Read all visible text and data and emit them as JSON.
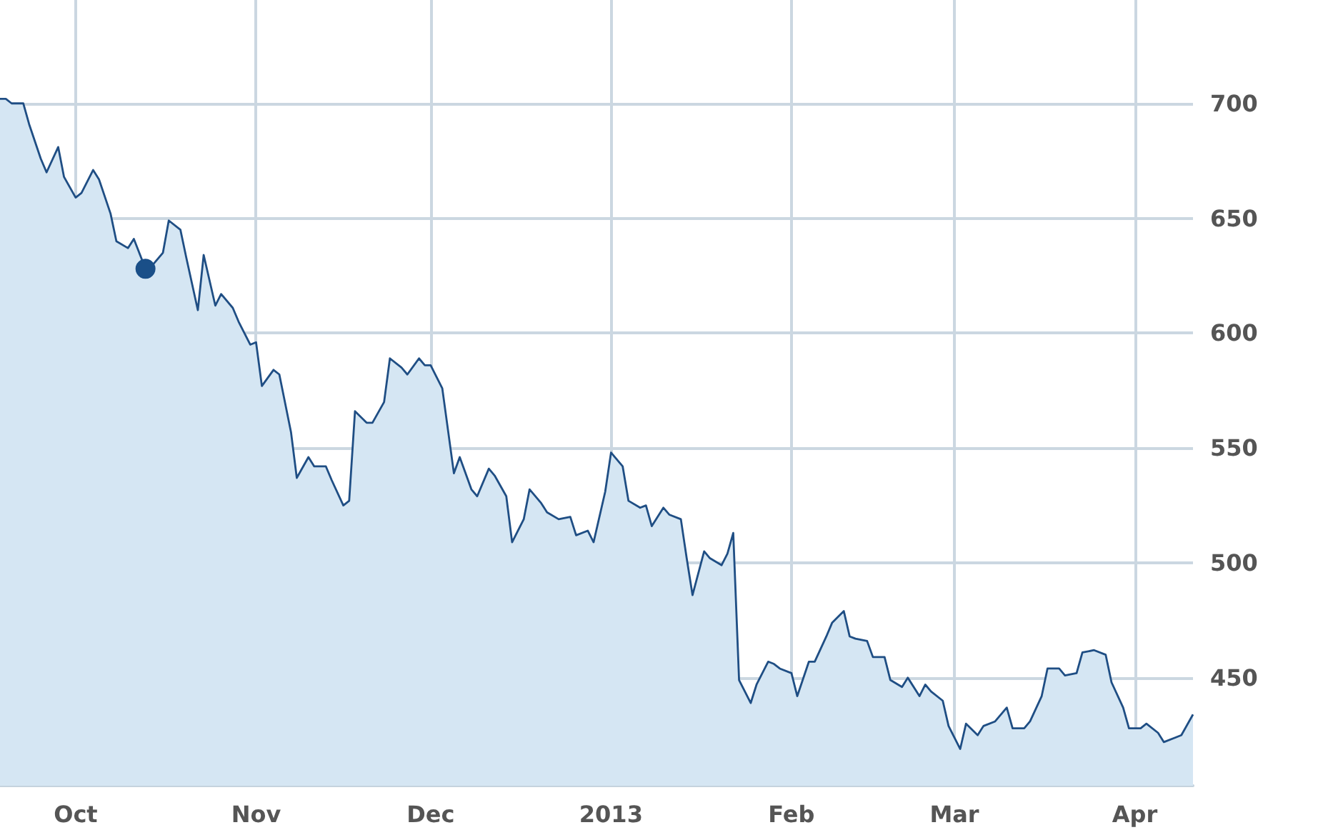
{
  "chart_data": {
    "type": "area",
    "x": [
      "2012-09-18",
      "2012-09-19",
      "2012-09-20",
      "2012-09-22",
      "2012-09-23",
      "2012-09-25",
      "2012-09-26",
      "2012-09-28",
      "2012-09-29",
      "2012-10-01",
      "2012-10-02",
      "2012-10-04",
      "2012-10-05",
      "2012-10-07",
      "2012-10-08",
      "2012-10-10",
      "2012-10-11",
      "2012-10-13",
      "2012-10-14",
      "2012-10-16",
      "2012-10-17",
      "2012-10-19",
      "2012-10-20",
      "2012-10-22",
      "2012-10-23",
      "2012-10-25",
      "2012-10-26",
      "2012-10-28",
      "2012-10-29",
      "2012-10-31",
      "2012-11-01",
      "2012-11-02",
      "2012-11-04",
      "2012-11-05",
      "2012-11-07",
      "2012-11-08",
      "2012-11-10",
      "2012-11-11",
      "2012-11-13",
      "2012-11-14",
      "2012-11-16",
      "2012-11-17",
      "2012-11-18",
      "2012-11-20",
      "2012-11-21",
      "2012-11-23",
      "2012-11-24",
      "2012-11-26",
      "2012-11-27",
      "2012-11-29",
      "2012-11-30",
      "2012-12-01",
      "2012-12-03",
      "2012-12-05",
      "2012-12-06",
      "2012-12-08",
      "2012-12-09",
      "2012-12-11",
      "2012-12-12",
      "2012-12-14",
      "2012-12-15",
      "2012-12-17",
      "2012-12-18",
      "2012-12-20",
      "2012-12-21",
      "2012-12-23",
      "2012-12-25",
      "2012-12-26",
      "2012-12-28",
      "2012-12-29",
      "2012-12-31",
      "2013-01-01",
      "2013-01-03",
      "2013-01-04",
      "2013-01-06",
      "2013-01-07",
      "2013-01-08",
      "2013-01-10",
      "2013-01-11",
      "2013-01-13",
      "2013-01-14",
      "2013-01-15",
      "2013-01-17",
      "2013-01-18",
      "2013-01-20",
      "2013-01-21",
      "2013-01-22",
      "2013-01-23",
      "2013-01-25",
      "2013-01-26",
      "2013-01-28",
      "2013-01-29",
      "2013-01-30",
      "2013-02-01",
      "2013-02-02",
      "2013-02-04",
      "2013-02-05",
      "2013-02-07",
      "2013-02-08",
      "2013-02-10",
      "2013-02-11",
      "2013-02-12",
      "2013-02-14",
      "2013-02-15",
      "2013-02-17",
      "2013-02-18",
      "2013-02-20",
      "2013-02-21",
      "2013-02-23",
      "2013-02-24",
      "2013-02-25",
      "2013-02-27",
      "2013-02-28",
      "2013-03-02",
      "2013-03-03",
      "2013-03-05",
      "2013-03-06",
      "2013-03-08",
      "2013-03-10",
      "2013-03-11",
      "2013-03-13",
      "2013-03-14",
      "2013-03-16",
      "2013-03-17",
      "2013-03-19",
      "2013-03-20",
      "2013-03-22",
      "2013-03-23",
      "2013-03-25",
      "2013-03-27",
      "2013-03-28",
      "2013-03-30",
      "2013-03-31",
      "2013-04-02",
      "2013-04-03",
      "2013-04-05",
      "2013-04-06",
      "2013-04-08",
      "2013-04-09",
      "2013-04-11"
    ],
    "series": [
      {
        "color": "#1f4e84",
        "values": [
          702,
          702,
          700,
          700,
          691,
          676,
          670,
          681,
          668,
          659,
          661,
          671,
          667,
          652,
          640,
          637,
          641,
          628,
          629,
          635,
          649,
          645,
          633,
          610,
          634,
          612,
          617,
          611,
          605,
          595,
          596,
          577,
          584,
          582,
          557,
          537,
          546,
          542,
          542,
          536,
          525,
          527,
          566,
          561,
          561,
          570,
          589,
          585,
          582,
          589,
          586,
          586,
          576,
          539,
          546,
          532,
          529,
          541,
          538,
          529,
          509,
          519,
          532,
          526,
          522,
          519,
          520,
          512,
          514,
          509,
          531,
          548,
          542,
          527,
          524,
          525,
          516,
          524,
          521,
          519,
          502,
          486,
          505,
          502,
          499,
          504,
          513,
          449,
          439,
          447,
          457,
          456,
          454,
          452,
          442,
          457,
          457,
          468,
          474,
          479,
          468,
          467,
          466,
          459,
          459,
          449,
          446,
          450,
          442,
          447,
          444,
          440,
          429,
          419,
          430,
          425,
          429,
          431,
          437,
          428,
          428,
          431,
          442,
          454,
          454,
          451,
          452,
          461,
          462,
          460,
          448,
          437,
          428,
          428,
          430,
          426,
          422,
          424,
          425,
          434
        ]
      },
      {
        "type": "scatter",
        "marker": "circle",
        "color": "#1a4f88",
        "x": [
          "2012-10-13"
        ],
        "values": [
          628
        ]
      }
    ],
    "xlim": [
      "2012-09-18",
      "2013-04-11"
    ],
    "xticks": [
      {
        "value": "2012-10-01",
        "label": "Oct"
      },
      {
        "value": "2012-11-01",
        "label": "Nov"
      },
      {
        "value": "2012-12-01",
        "label": "Dec"
      },
      {
        "value": "2013-01-01",
        "label": "2013"
      },
      {
        "value": "2013-02-01",
        "label": "Feb"
      },
      {
        "value": "2013-03-01",
        "label": "Mar"
      },
      {
        "value": "2013-04-01",
        "label": "Apr"
      }
    ],
    "ylim": [
      403,
      745
    ],
    "yticks": [
      450,
      500,
      550,
      600,
      650,
      700
    ],
    "grid": true,
    "marker": "none",
    "line_style": "solid"
  }
}
